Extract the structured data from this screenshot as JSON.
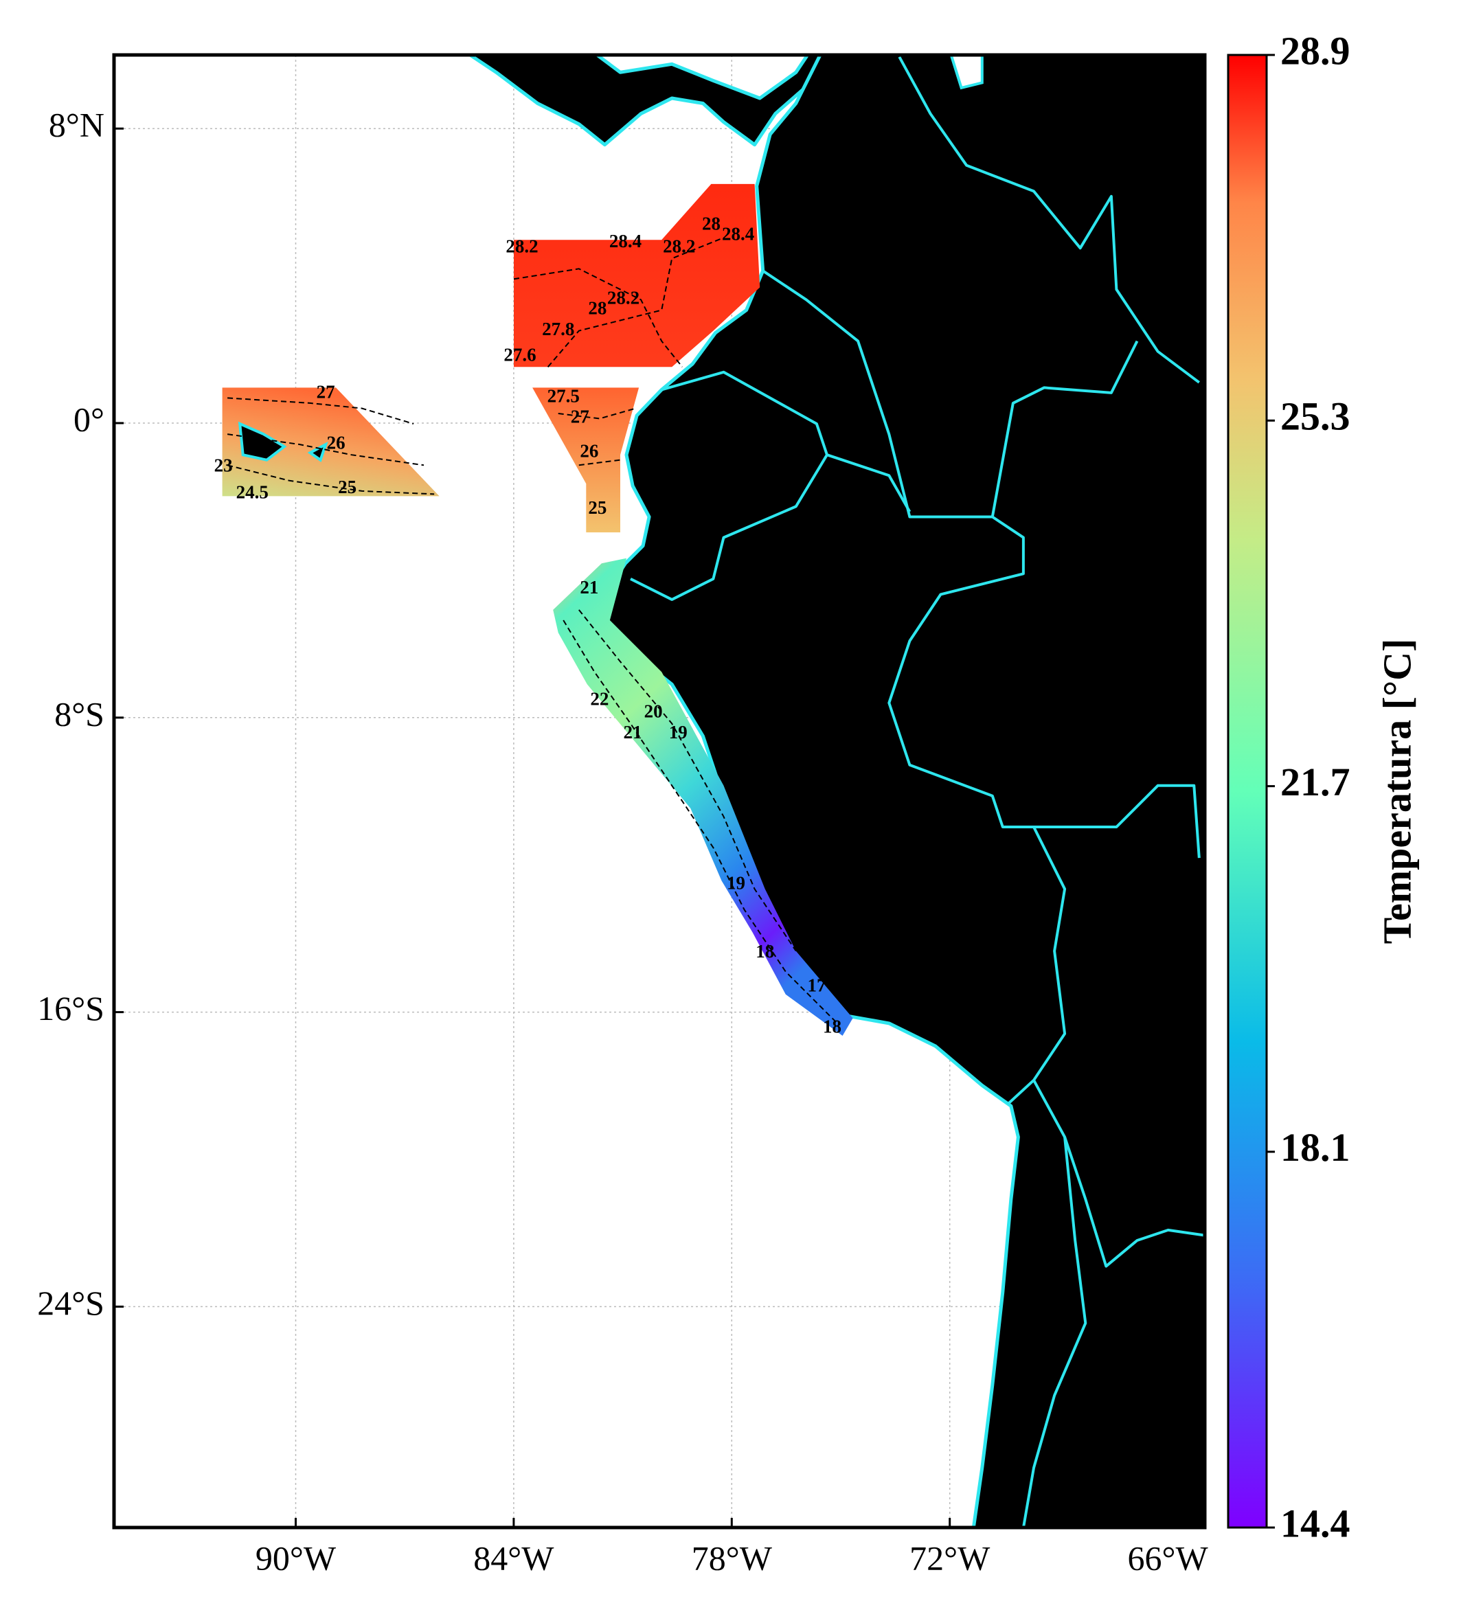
{
  "chart_data": {
    "type": "map",
    "xlim": [
      -95,
      -65
    ],
    "ylim": [
      -30,
      10
    ],
    "xticks": [
      {
        "value": -90,
        "label": "90°W"
      },
      {
        "value": -84,
        "label": "84°W"
      },
      {
        "value": -78,
        "label": "78°W"
      },
      {
        "value": -72,
        "label": "72°W"
      },
      {
        "value": -66,
        "label": "66°W"
      }
    ],
    "yticks": [
      {
        "value": 8,
        "label": "8°N"
      },
      {
        "value": 0,
        "label": "0°"
      },
      {
        "value": -8,
        "label": "8°S"
      },
      {
        "value": -16,
        "label": "16°S"
      },
      {
        "value": -24,
        "label": "24°S"
      }
    ],
    "grid": true,
    "colorbar": {
      "label": "Temperatura [°C]",
      "lim": [
        14.4,
        28.9
      ],
      "ticks": [
        14.4,
        18.1,
        21.7,
        25.3,
        28.9
      ]
    },
    "contour_labels": [
      28.2,
      28.4,
      28.2,
      28,
      28.4,
      28.2,
      28,
      27.8,
      27.6,
      27,
      26,
      25,
      24.5,
      23,
      27.5,
      27,
      26,
      25,
      21,
      22,
      21,
      20,
      19,
      19,
      18,
      17,
      18
    ]
  }
}
